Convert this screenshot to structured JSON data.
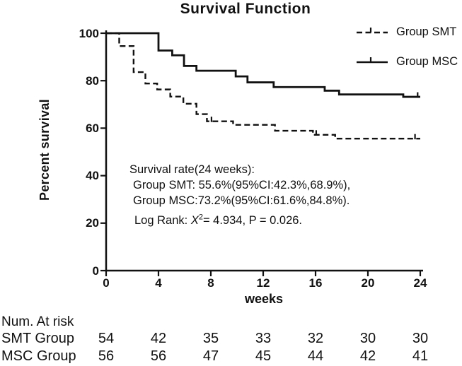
{
  "chart_data": {
    "type": "line",
    "subtype": "kaplan-meier-step",
    "title": "Survival Function",
    "xlabel": "weeks",
    "ylabel": "Percent survival",
    "xlim": [
      0,
      24
    ],
    "ylim": [
      0,
      100
    ],
    "x_ticks": [
      0,
      4,
      8,
      12,
      16,
      20,
      24
    ],
    "y_ticks": [
      0,
      20,
      40,
      60,
      80,
      100
    ],
    "grid": false,
    "legend_position": "top-right",
    "color": "#111111",
    "series": [
      {
        "name": "Group SMT",
        "line": "dashed",
        "steps": [
          [
            0,
            100
          ],
          [
            1,
            94.6
          ],
          [
            2.1,
            83.6
          ],
          [
            3,
            78.8
          ],
          [
            3.9,
            76.3
          ],
          [
            4.9,
            73.3
          ],
          [
            5.9,
            70.3
          ],
          [
            6.9,
            65.9
          ],
          [
            7.7,
            62.9
          ],
          [
            9.7,
            61.4
          ],
          [
            12.9,
            58.9
          ],
          [
            15.8,
            57.2
          ],
          [
            17.5,
            55.6
          ],
          [
            24,
            55.6
          ]
        ],
        "censor_ticks": [
          [
            8.05,
            62.9
          ],
          [
            16.05,
            57.2
          ],
          [
            23.6,
            55.6
          ]
        ]
      },
      {
        "name": "Group MSC",
        "line": "solid",
        "steps": [
          [
            0,
            100
          ],
          [
            4,
            92.7
          ],
          [
            5.05,
            90.7
          ],
          [
            5.95,
            86.2
          ],
          [
            6.9,
            84.2
          ],
          [
            9.9,
            81.8
          ],
          [
            10.8,
            79.3
          ],
          [
            12.8,
            77.3
          ],
          [
            16.7,
            75.8
          ],
          [
            17.8,
            74.2
          ],
          [
            22.7,
            73.2
          ],
          [
            24,
            73.2
          ]
        ],
        "censor_ticks": [
          [
            23.8,
            73.2
          ]
        ]
      }
    ],
    "annotation": {
      "lines": [
        "Survival rate(24 weeks):",
        "Group SMT: 55.6%(95%CI:42.3%,68.9%),",
        "Group MSC:73.2%(95%CI:61.6%,84.8%)."
      ],
      "log_rank": {
        "prefix": "Log Rank: ",
        "variable": "X",
        "exponent": "2",
        "rest": "= 4.934, P = 0.026."
      }
    }
  },
  "risk_table": {
    "title": "Num. At risk",
    "rows": [
      {
        "label": "SMT Group",
        "values": [
          54,
          42,
          35,
          33,
          32,
          30,
          30
        ]
      },
      {
        "label": "MSC Group",
        "values": [
          56,
          56,
          47,
          45,
          44,
          42,
          41
        ]
      }
    ]
  }
}
